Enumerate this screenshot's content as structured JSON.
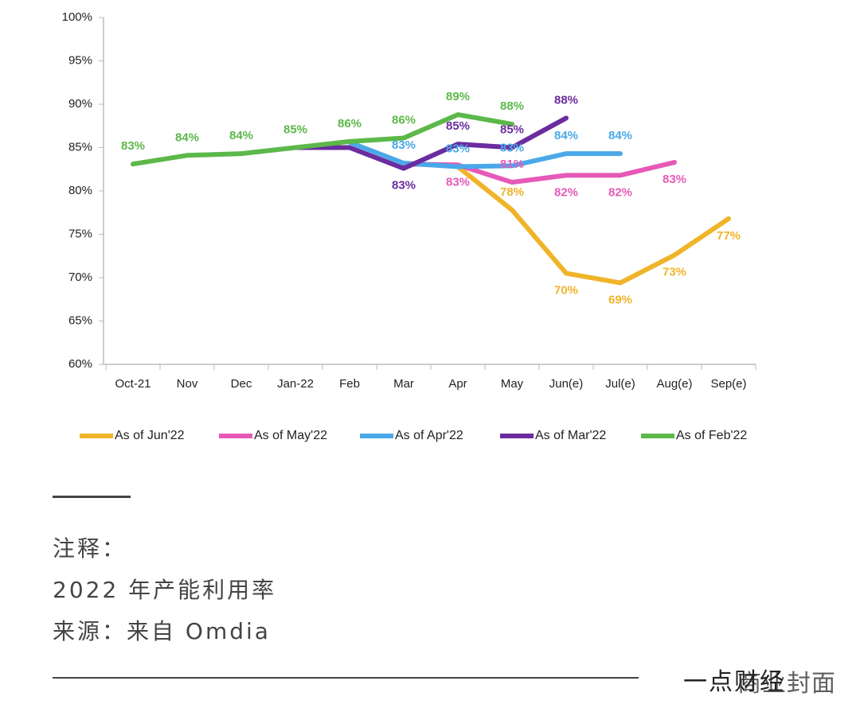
{
  "chart_data": {
    "type": "line",
    "categories": [
      "Oct-21",
      "Nov",
      "Dec",
      "Jan-22",
      "Feb",
      "Mar",
      "Apr",
      "May",
      "Jun(e)",
      "Jul(e)",
      "Aug(e)",
      "Sep(e)"
    ],
    "ylim": [
      60,
      100
    ],
    "yticks": [
      {
        "value": 60,
        "label": "60%"
      },
      {
        "value": 65,
        "label": "65%"
      },
      {
        "value": 70,
        "label": "70%"
      },
      {
        "value": 75,
        "label": "75%"
      },
      {
        "value": 80,
        "label": "80%"
      },
      {
        "value": 85,
        "label": "85%"
      },
      {
        "value": 90,
        "label": "90%"
      },
      {
        "value": 95,
        "label": "95%"
      },
      {
        "value": 100,
        "label": "100%"
      }
    ],
    "grid": false,
    "legend": "bottom",
    "series": [
      {
        "name": "As of Jun'22",
        "color": "#f0b429",
        "values": [
          null,
          null,
          null,
          null,
          null,
          null,
          82.8,
          77.8,
          70.5,
          69.4,
          72.6,
          76.8
        ],
        "value_labels": [
          null,
          null,
          null,
          null,
          null,
          null,
          null,
          "78%",
          "70%",
          "69%",
          "73%",
          "77%"
        ]
      },
      {
        "name": "As of May'22",
        "color": "#e659b8",
        "values": [
          null,
          null,
          null,
          null,
          null,
          83.1,
          83.0,
          81.0,
          81.8,
          81.8,
          83.3,
          null
        ],
        "value_labels": [
          null,
          null,
          null,
          null,
          null,
          null,
          "83%",
          "81%",
          "82%",
          "82%",
          "83%",
          null
        ]
      },
      {
        "name": "As of Apr'22",
        "color": "#4aa8e8",
        "values": [
          null,
          null,
          null,
          null,
          85.6,
          83.2,
          82.8,
          82.9,
          84.3,
          84.3,
          null,
          null
        ],
        "value_labels": [
          null,
          null,
          null,
          null,
          null,
          "83%",
          "83%",
          "83%",
          "84%",
          "84%",
          null,
          null
        ]
      },
      {
        "name": "As of Mar'22",
        "color": "#6a2c9e",
        "values": [
          null,
          null,
          null,
          85.0,
          85.0,
          82.6,
          85.4,
          85.0,
          88.4,
          null,
          null,
          null
        ],
        "value_labels": [
          null,
          null,
          null,
          null,
          null,
          "83%",
          "85%",
          "85%",
          "88%",
          null,
          null,
          null
        ]
      },
      {
        "name": "As of Feb'22",
        "color": "#5cb84a",
        "values": [
          83.1,
          84.1,
          84.3,
          85.0,
          85.7,
          86.1,
          88.8,
          87.7,
          null,
          null,
          null,
          null
        ],
        "value_labels": [
          "83%",
          "84%",
          "84%",
          "85%",
          "86%",
          "86%",
          "89%",
          "88%",
          null,
          null,
          null,
          null
        ]
      }
    ]
  },
  "notes": {
    "heading": "注释：",
    "lines": [
      "2022 年产能利用率",
      "来源：来自 Omdia"
    ]
  },
  "footer": {
    "brand": "一点财经",
    "watermark": "商业封面"
  }
}
